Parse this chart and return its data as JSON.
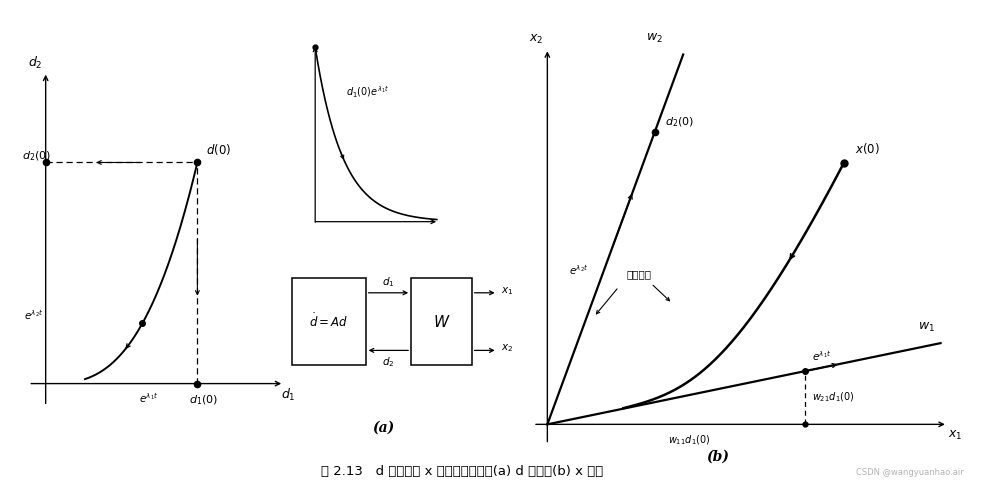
{
  "bg_color": "#ffffff",
  "title_text": "图 2.13   d 平面上和 x 平面上的轨迹：(a) d 平面；(b) x 平面",
  "label_a": "(a)",
  "label_b": "(b)",
  "watermark": "CSDN @wangyuanhao.air"
}
